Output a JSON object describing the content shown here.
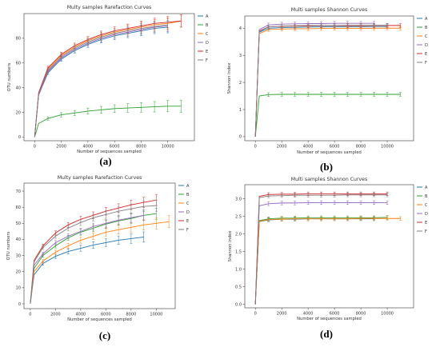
{
  "panel_labels": [
    "(a)",
    "(b)",
    "(c)",
    "(d)"
  ],
  "chart_data": [
    {
      "type": "line",
      "title": "Multy samples Rarefaction Curves",
      "xlabel": "Number of sequences sampled",
      "ylabel": "OTU numbers",
      "xlim": [
        -800,
        12000
      ],
      "ylim": [
        -3,
        100
      ],
      "xticks": [
        0,
        2000,
        4000,
        6000,
        8000,
        10000
      ],
      "yticks": [
        0,
        20,
        40,
        60,
        80
      ],
      "legend": "top-right",
      "series": [
        {
          "name": "A",
          "color": "#1f77b4",
          "x": [
            0,
            300,
            1000,
            2000,
            3000,
            4000,
            5000,
            6000,
            7000,
            8000,
            9000,
            10000
          ],
          "y": [
            0,
            34,
            52,
            63,
            70,
            75,
            79,
            82,
            84,
            86,
            88,
            89
          ]
        },
        {
          "name": "B",
          "color": "#2ca02c",
          "x": [
            0,
            300,
            1000,
            2000,
            3000,
            4000,
            5000,
            6000,
            7000,
            8000,
            9000,
            10000,
            11000
          ],
          "y": [
            0,
            11,
            15,
            18,
            19.5,
            21,
            22,
            23,
            23.5,
            24,
            24.5,
            25,
            25
          ]
        },
        {
          "name": "C",
          "color": "#ff7f0e",
          "x": [
            0,
            300,
            1000,
            2000,
            3000,
            4000,
            5000,
            6000,
            7000,
            8000,
            9000,
            10000,
            11000
          ],
          "y": [
            0,
            35,
            55,
            66,
            73,
            78,
            82,
            85,
            87,
            89,
            91,
            92,
            94
          ]
        },
        {
          "name": "D",
          "color": "#9467bd",
          "x": [
            0,
            300,
            1000,
            2000,
            3000,
            4000,
            5000,
            6000,
            7000,
            8000,
            9000,
            10000
          ],
          "y": [
            0,
            34,
            53,
            64,
            71,
            76,
            80,
            83,
            85,
            87,
            89,
            90
          ]
        },
        {
          "name": "E",
          "color": "#d62728",
          "x": [
            0,
            300,
            1000,
            2000,
            3000,
            4000,
            5000,
            6000,
            7000,
            8000,
            9000,
            10000,
            11000
          ],
          "y": [
            0,
            36,
            56,
            67,
            74,
            79,
            83,
            86,
            88,
            90,
            92,
            93,
            94
          ]
        },
        {
          "name": "F",
          "color": "#7f7f7f",
          "x": [
            0,
            300,
            1000,
            2000,
            3000,
            4000,
            5000,
            6000,
            7000,
            8000,
            9000,
            10000
          ],
          "y": [
            0,
            35,
            54,
            65,
            72,
            77,
            81,
            84,
            86,
            88,
            89.5,
            91
          ]
        }
      ]
    },
    {
      "type": "line",
      "title": "Multi samples Shannon Curves",
      "xlabel": "Number of sequences sampled",
      "ylabel": "Shannon index",
      "xlim": [
        -800,
        12000
      ],
      "ylim": [
        -0.15,
        4.45
      ],
      "xticks": [
        0,
        2000,
        4000,
        6000,
        8000,
        10000
      ],
      "yticks": [
        0,
        1,
        2,
        3,
        4
      ],
      "legend": "top-right",
      "series": [
        {
          "name": "A",
          "color": "#1f77b4",
          "x": [
            0,
            300,
            1000,
            2000,
            3000,
            4000,
            5000,
            6000,
            7000,
            8000,
            9000,
            10000
          ],
          "y": [
            0,
            3.85,
            4.0,
            4.02,
            4.03,
            4.04,
            4.05,
            4.05,
            4.05,
            4.05,
            4.06,
            4.06
          ]
        },
        {
          "name": "B",
          "color": "#2ca02c",
          "x": [
            0,
            300,
            1000,
            2000,
            3000,
            4000,
            5000,
            6000,
            7000,
            8000,
            9000,
            10000,
            11000
          ],
          "y": [
            0,
            1.5,
            1.55,
            1.56,
            1.56,
            1.56,
            1.56,
            1.56,
            1.56,
            1.56,
            1.56,
            1.56,
            1.56
          ]
        },
        {
          "name": "C",
          "color": "#ff7f0e",
          "x": [
            0,
            300,
            1000,
            2000,
            3000,
            4000,
            5000,
            6000,
            7000,
            8000,
            9000,
            10000,
            11000
          ],
          "y": [
            0,
            3.8,
            3.95,
            3.97,
            3.98,
            3.98,
            3.99,
            3.99,
            3.99,
            3.99,
            4.0,
            4.0,
            4.0
          ]
        },
        {
          "name": "D",
          "color": "#9467bd",
          "x": [
            0,
            300,
            1000,
            2000,
            3000,
            4000,
            5000,
            6000,
            7000,
            8000,
            9000
          ],
          "y": [
            0,
            3.95,
            4.12,
            4.15,
            4.16,
            4.17,
            4.17,
            4.18,
            4.18,
            4.18,
            4.18
          ]
        },
        {
          "name": "E",
          "color": "#d62728",
          "x": [
            0,
            300,
            1000,
            2000,
            3000,
            4000,
            5000,
            6000,
            7000,
            8000,
            9000,
            10000,
            11000
          ],
          "y": [
            0,
            3.9,
            4.05,
            4.07,
            4.08,
            4.08,
            4.09,
            4.09,
            4.09,
            4.09,
            4.1,
            4.1,
            4.1
          ]
        },
        {
          "name": "F",
          "color": "#7f7f7f",
          "x": [
            0,
            300,
            1000,
            2000,
            3000,
            4000,
            5000,
            6000,
            7000,
            8000,
            9000,
            10000
          ],
          "y": [
            0,
            3.88,
            4.05,
            4.08,
            4.09,
            4.1,
            4.1,
            4.1,
            4.11,
            4.11,
            4.11,
            4.11
          ]
        }
      ]
    },
    {
      "type": "line",
      "title": "Multy samples Rarefaction Curves",
      "xlabel": "Number of sequences sampled",
      "ylabel": "OTU numbers",
      "xlim": [
        -500,
        11500
      ],
      "ylim": [
        -3,
        75
      ],
      "xticks": [
        0,
        2000,
        4000,
        6000,
        8000,
        10000
      ],
      "yticks": [
        0,
        10,
        20,
        30,
        40,
        50,
        60,
        70
      ],
      "legend": "top-right",
      "series": [
        {
          "name": "A",
          "color": "#1f77b4",
          "x": [
            0,
            300,
            1000,
            2000,
            3000,
            4000,
            5000,
            6000,
            7000,
            8000,
            9000
          ],
          "y": [
            0,
            18,
            25,
            29.5,
            32.5,
            34.5,
            36.5,
            38,
            39.5,
            40.5,
            41.5
          ]
        },
        {
          "name": "B",
          "color": "#2ca02c",
          "x": [
            0,
            300,
            1000,
            2000,
            3000,
            4000,
            5000,
            6000,
            7000,
            8000,
            9000,
            10000
          ],
          "y": [
            0,
            22,
            30,
            36,
            41,
            44.5,
            47,
            49.5,
            51.5,
            53,
            55,
            56
          ]
        },
        {
          "name": "C",
          "color": "#ff7f0e",
          "x": [
            0,
            300,
            1000,
            2000,
            3000,
            4000,
            5000,
            6000,
            7000,
            8000,
            9000,
            10000,
            11000
          ],
          "y": [
            0,
            20,
            26.5,
            32,
            36,
            39.5,
            42,
            44.5,
            46,
            47.5,
            49,
            50,
            51
          ]
        },
        {
          "name": "D",
          "color": "#9467bd",
          "x": [
            0,
            300,
            1000,
            2000,
            3000,
            4000,
            5000,
            6000,
            7000,
            8000,
            9000
          ],
          "y": [
            0,
            24,
            31,
            38,
            42,
            45,
            48,
            50,
            52,
            53.5,
            55
          ]
        },
        {
          "name": "E",
          "color": "#d62728",
          "x": [
            0,
            300,
            1000,
            2000,
            3000,
            4000,
            5000,
            6000,
            7000,
            8000,
            9000,
            10000
          ],
          "y": [
            0,
            27,
            36,
            44,
            49,
            52.5,
            55,
            57.5,
            59.5,
            61.5,
            63,
            64.5
          ]
        },
        {
          "name": "F",
          "color": "#7f7f7f",
          "x": [
            0,
            300,
            1000,
            2000,
            3000,
            4000,
            5000,
            6000,
            7000,
            8000,
            9000,
            10000
          ],
          "y": [
            0,
            26,
            35,
            42,
            47,
            50.5,
            53.5,
            55.5,
            57.5,
            59,
            60.5,
            61
          ]
        }
      ]
    },
    {
      "type": "line",
      "title": "Multi samples Shannon Curves",
      "xlabel": "Number of sequences sampled",
      "ylabel": "Shannon index",
      "xlim": [
        -800,
        12000
      ],
      "ylim": [
        -0.1,
        3.4
      ],
      "xticks": [
        0,
        2000,
        4000,
        6000,
        8000,
        10000
      ],
      "yticks": [
        0.0,
        0.5,
        1.0,
        1.5,
        2.0,
        2.5,
        3.0
      ],
      "ytick_labels": [
        "0.0",
        "0.5",
        "1.0",
        "1.5",
        "2.0",
        "2.5",
        "3.0"
      ],
      "legend": "top-right",
      "series": [
        {
          "name": "A",
          "color": "#1f77b4",
          "x": [
            0,
            300,
            1000,
            2000,
            3000,
            4000,
            5000,
            6000,
            7000,
            8000,
            9000
          ],
          "y": [
            0,
            2.35,
            2.4,
            2.42,
            2.42,
            2.43,
            2.43,
            2.43,
            2.43,
            2.43,
            2.43
          ]
        },
        {
          "name": "B",
          "color": "#2ca02c",
          "x": [
            0,
            300,
            1000,
            2000,
            3000,
            4000,
            5000,
            6000,
            7000,
            8000,
            9000,
            10000
          ],
          "y": [
            0,
            2.38,
            2.43,
            2.45,
            2.45,
            2.46,
            2.46,
            2.46,
            2.46,
            2.46,
            2.46,
            2.47
          ]
        },
        {
          "name": "C",
          "color": "#ff7f0e",
          "x": [
            0,
            300,
            1000,
            2000,
            3000,
            4000,
            5000,
            6000,
            7000,
            8000,
            9000,
            10000,
            11000
          ],
          "y": [
            0,
            2.36,
            2.41,
            2.42,
            2.43,
            2.43,
            2.43,
            2.43,
            2.43,
            2.44,
            2.44,
            2.44,
            2.44
          ]
        },
        {
          "name": "D",
          "color": "#9467bd",
          "x": [
            0,
            300,
            1000,
            2000,
            3000,
            4000,
            5000,
            6000,
            7000,
            8000,
            9000,
            10000
          ],
          "y": [
            0,
            2.8,
            2.86,
            2.88,
            2.88,
            2.89,
            2.89,
            2.89,
            2.89,
            2.89,
            2.89,
            2.89
          ]
        },
        {
          "name": "E",
          "color": "#d62728",
          "x": [
            0,
            300,
            1000,
            2000,
            3000,
            4000,
            5000,
            6000,
            7000,
            8000,
            9000,
            10000
          ],
          "y": [
            0,
            3.07,
            3.12,
            3.13,
            3.13,
            3.14,
            3.14,
            3.14,
            3.14,
            3.14,
            3.14,
            3.14
          ]
        },
        {
          "name": "F",
          "color": "#7f7f7f",
          "x": [
            0,
            300,
            1000,
            2000,
            3000,
            4000,
            5000,
            6000,
            7000,
            8000,
            9000,
            10000
          ],
          "y": [
            0,
            3.03,
            3.08,
            3.09,
            3.1,
            3.1,
            3.1,
            3.1,
            3.11,
            3.11,
            3.11,
            3.11
          ]
        }
      ]
    }
  ]
}
